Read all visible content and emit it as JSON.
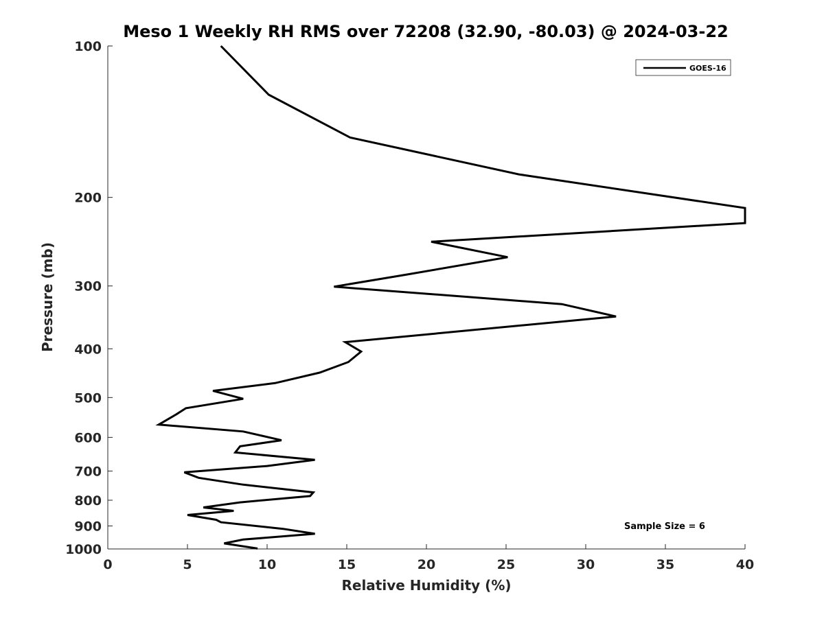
{
  "chart_data": {
    "type": "line",
    "title": "Meso 1 Weekly RH RMS over 72208 (32.90, -80.03) @ 2024-03-22",
    "xlabel": "Relative Humidity (%)",
    "ylabel": "Pressure (mb)",
    "xlim": [
      0,
      40
    ],
    "ylim": [
      100,
      1000
    ],
    "y_scale": "log",
    "y_reversed": true,
    "grid": false,
    "legend_position": "top-right",
    "x_ticks": [
      "0",
      "5",
      "10",
      "15",
      "20",
      "25",
      "30",
      "35",
      "40"
    ],
    "y_ticks": [
      "100",
      "200",
      "300",
      "400",
      "500",
      "600",
      "700",
      "800",
      "900",
      "1000"
    ],
    "series": [
      {
        "name": "GOES-16",
        "color": "#000000",
        "points": [
          [
            7.1,
            100
          ],
          [
            10.1,
            125
          ],
          [
            15.2,
            152
          ],
          [
            25.8,
            180
          ],
          [
            40.0,
            210
          ],
          [
            40.0,
            225
          ],
          [
            20.3,
            245
          ],
          [
            25.1,
            263
          ],
          [
            18.7,
            285
          ],
          [
            14.2,
            301
          ],
          [
            28.5,
            326
          ],
          [
            31.9,
            345
          ],
          [
            14.9,
            388
          ],
          [
            15.9,
            405
          ],
          [
            15.1,
            425
          ],
          [
            13.3,
            446
          ],
          [
            10.5,
            468
          ],
          [
            6.6,
            485
          ],
          [
            8.5,
            503
          ],
          [
            4.9,
            525
          ],
          [
            4.3,
            540
          ],
          [
            3.2,
            566
          ],
          [
            8.5,
            584
          ],
          [
            10.9,
            608
          ],
          [
            8.3,
            625
          ],
          [
            8.0,
            643
          ],
          [
            13.0,
            665
          ],
          [
            10.0,
            684
          ],
          [
            4.8,
            704
          ],
          [
            5.7,
            722
          ],
          [
            8.5,
            745
          ],
          [
            12.9,
            772
          ],
          [
            12.7,
            785
          ],
          [
            8.3,
            808
          ],
          [
            6.0,
            827
          ],
          [
            7.9,
            840
          ],
          [
            5.0,
            856
          ],
          [
            6.8,
            875
          ],
          [
            7.1,
            885
          ],
          [
            11.0,
            912
          ],
          [
            13.0,
            933
          ],
          [
            8.5,
            958
          ],
          [
            7.3,
            975
          ],
          [
            9.4,
            998
          ]
        ]
      }
    ],
    "annotations": [
      "Sample Size = 6"
    ]
  }
}
